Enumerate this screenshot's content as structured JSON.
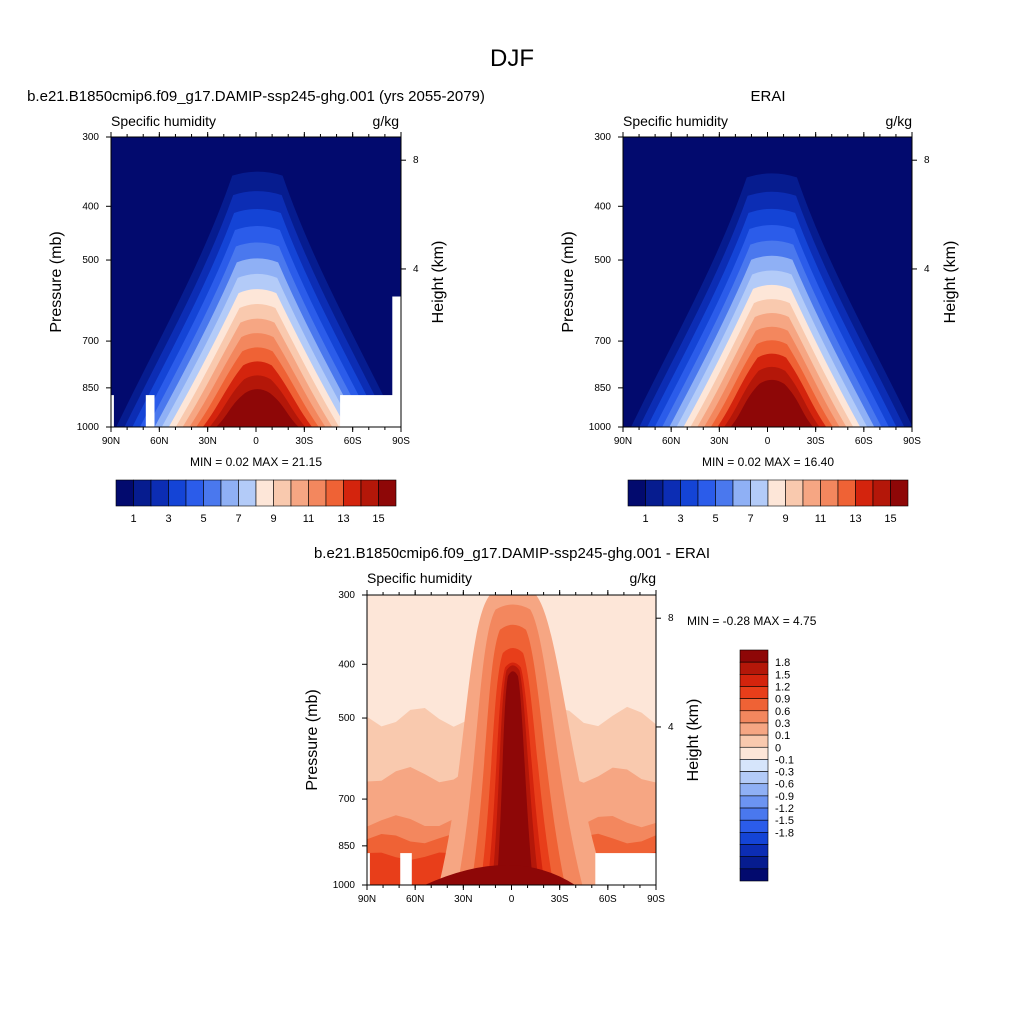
{
  "figure": {
    "title": "DJF"
  },
  "colors": {
    "positive": [
      "#fde6d8",
      "#f9c9ae",
      "#f6a683",
      "#f3875e",
      "#ef6235",
      "#e83e1a",
      "#d4240d",
      "#b41709",
      "#8e0707"
    ],
    "negative": [
      "#d6e5fb",
      "#b3cbf8",
      "#8fb0f5",
      "#6c94f2",
      "#4a78ee",
      "#2b5cea",
      "#1444d6",
      "#0c2db4",
      "#061c8f",
      "#020a6e"
    ],
    "ghost": "#ffffff"
  },
  "panels": {
    "model": {
      "title": "b.e21.B1850cmip6.f09_g17.DAMIP-ssp245-ghg.001 (yrs 2055-2079)",
      "variable": "Specific humidity",
      "units": "g/kg",
      "ylabel": "Pressure (mb)",
      "ylabel_right": "Height (km)",
      "stats": "MIN =   0.02  MAX =  21.15"
    },
    "obs": {
      "title": "ERAI",
      "variable": "Specific humidity",
      "units": "g/kg",
      "ylabel": "Pressure (mb)",
      "ylabel_right": "Height (km)",
      "stats": "MIN =   0.02  MAX =  16.40"
    },
    "diff": {
      "title": "b.e21.B1850cmip6.f09_g17.DAMIP-ssp245-ghg.001 - ERAI",
      "variable": "Specific humidity",
      "units": "g/kg",
      "ylabel": "Pressure (mb)",
      "ylabel_right": "Height (km)",
      "stats": "MIN =  -0.28  MAX =   4.75"
    }
  },
  "chart_data": [
    {
      "type": "heatmap",
      "name": "model",
      "title": "b.e21.B1850cmip6.f09_g17.DAMIP-ssp245-ghg.001 (yrs 2055-2079)",
      "xlabel": "",
      "ylabel": "Pressure (mb)",
      "xticks": [
        "90N",
        "60N",
        "30N",
        "0",
        "30S",
        "60S",
        "90S"
      ],
      "yticks": [
        "300",
        "400",
        "500",
        "700",
        "850",
        "1000"
      ],
      "right_ticks": [
        "8",
        "4"
      ],
      "colorbar_levels": [
        "1",
        "3",
        "5",
        "7",
        "9",
        "11",
        "13",
        "15"
      ],
      "contour_levels": [
        1,
        2,
        3,
        4,
        5,
        6,
        7,
        8,
        9,
        10,
        11,
        12,
        13,
        14,
        15
      ],
      "ylim": [
        1000,
        300
      ],
      "xlim": [
        90,
        -90
      ],
      "min": 0.02,
      "max": 21.15
    },
    {
      "type": "heatmap",
      "name": "obs",
      "title": "ERAI",
      "xlabel": "",
      "ylabel": "Pressure (mb)",
      "xticks": [
        "90N",
        "60N",
        "30N",
        "0",
        "30S",
        "60S",
        "90S"
      ],
      "yticks": [
        "300",
        "400",
        "500",
        "700",
        "850",
        "1000"
      ],
      "right_ticks": [
        "8",
        "4"
      ],
      "colorbar_levels": [
        "1",
        "3",
        "5",
        "7",
        "9",
        "11",
        "13",
        "15"
      ],
      "contour_levels": [
        1,
        2,
        3,
        4,
        5,
        6,
        7,
        8,
        9,
        10,
        11,
        12,
        13,
        14,
        15
      ],
      "ylim": [
        1000,
        300
      ],
      "xlim": [
        90,
        -90
      ],
      "min": 0.02,
      "max": 16.4
    },
    {
      "type": "heatmap",
      "name": "diff",
      "title": "b.e21.B1850cmip6.f09_g17.DAMIP-ssp245-ghg.001 - ERAI",
      "xlabel": "",
      "ylabel": "Pressure (mb)",
      "xticks": [
        "90N",
        "60N",
        "30N",
        "0",
        "30S",
        "60S",
        "90S"
      ],
      "yticks": [
        "300",
        "400",
        "500",
        "700",
        "850",
        "1000"
      ],
      "right_ticks": [
        "8",
        "4"
      ],
      "colorbar_levels": [
        "1.8",
        "1.5",
        "1.2",
        "0.9",
        "0.6",
        "0.3",
        "0.1",
        "0",
        "-0.1",
        "-0.3",
        "-0.6",
        "-0.9",
        "-1.2",
        "-1.5",
        "-1.8"
      ],
      "ylim": [
        1000,
        300
      ],
      "xlim": [
        90,
        -90
      ],
      "min": -0.28,
      "max": 4.75
    }
  ]
}
